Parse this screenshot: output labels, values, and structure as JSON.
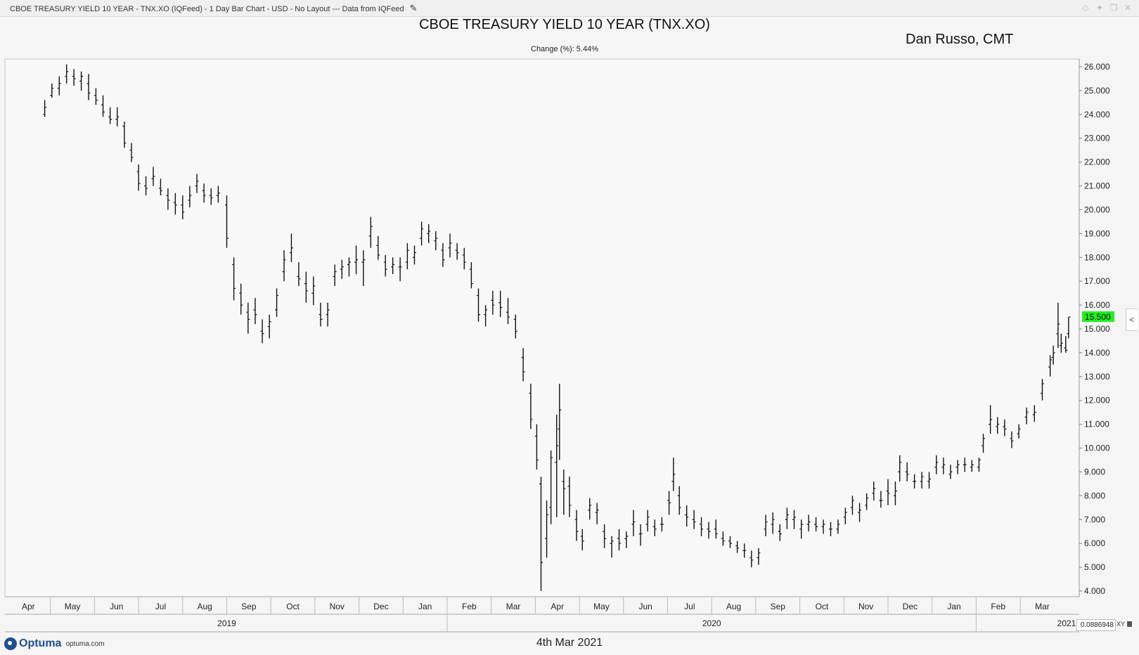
{
  "window": {
    "title": "CBOE TREASURY YIELD 10 YEAR - TNX.XO (IQFeed) - 1 Day Bar Chart - USD - No Layout --- Data from IQFeed",
    "controls": [
      "diamond-icon",
      "pin-icon",
      "restore-icon",
      "close-icon"
    ]
  },
  "author": "Dan Russo, CMT",
  "footer": {
    "brand": "Optuma",
    "url": "optuma.com",
    "date": "4th Mar 2021",
    "scale_value": "0.0886948",
    "scale_mode": "XY"
  },
  "colors": {
    "bar": "#111111",
    "last_price_bg": "#22ee22",
    "logo": "#1e4f8e"
  },
  "chart_data": {
    "type": "bar",
    "title": "CBOE TREASURY YIELD 10 YEAR (TNX.XO)",
    "subtitle": "Change (%): 5.44%",
    "last_price": "15.500",
    "ylim": [
      4,
      26
    ],
    "y_ticks": [
      "4.000",
      "5.000",
      "6.000",
      "7.000",
      "8.000",
      "9.000",
      "10.000",
      "11.000",
      "12.000",
      "13.000",
      "14.000",
      "15.000",
      "16.000",
      "17.000",
      "18.000",
      "19.000",
      "20.000",
      "21.000",
      "22.000",
      "23.000",
      "24.000",
      "25.000",
      "26.000"
    ],
    "month_labels": [
      "Apr",
      "May",
      "Jun",
      "Jul",
      "Aug",
      "Sep",
      "Oct",
      "Nov",
      "Dec",
      "Jan",
      "Feb",
      "Mar",
      "Apr",
      "May",
      "Jun",
      "Jul",
      "Aug",
      "Sep",
      "Oct",
      "Nov",
      "Dec",
      "Jan",
      "Feb",
      "Mar"
    ],
    "year_labels": [
      "2019",
      "2020",
      "2021"
    ],
    "grid": false,
    "series": [
      {
        "values": [
          [
            "2019-03-28",
            24.0,
            24.6,
            23.9,
            24.3
          ],
          [
            "2019-04-02",
            24.8,
            25.3,
            24.7,
            25.1
          ],
          [
            "2019-04-07",
            25.1,
            25.6,
            24.8,
            25.3
          ],
          [
            "2019-04-12",
            25.6,
            26.1,
            25.3,
            25.8
          ],
          [
            "2019-04-17",
            25.6,
            25.9,
            25.2,
            25.5
          ],
          [
            "2019-04-22",
            25.4,
            25.8,
            25.0,
            25.6
          ],
          [
            "2019-04-27",
            25.3,
            25.7,
            24.6,
            24.9
          ],
          [
            "2019-05-02",
            24.8,
            25.1,
            24.4,
            24.6
          ],
          [
            "2019-05-07",
            24.4,
            24.8,
            23.9,
            24.1
          ],
          [
            "2019-05-12",
            23.9,
            24.3,
            23.6,
            23.8
          ],
          [
            "2019-05-17",
            23.8,
            24.3,
            23.5,
            23.9
          ],
          [
            "2019-05-22",
            23.5,
            23.7,
            22.6,
            22.8
          ],
          [
            "2019-05-27",
            22.5,
            22.8,
            22.0,
            22.2
          ],
          [
            "2019-06-01",
            21.6,
            21.9,
            20.8,
            21.1
          ],
          [
            "2019-06-06",
            21.0,
            21.4,
            20.6,
            20.9
          ],
          [
            "2019-06-11",
            21.3,
            21.8,
            21.0,
            21.4
          ],
          [
            "2019-06-16",
            20.9,
            21.3,
            20.6,
            20.8
          ],
          [
            "2019-06-21",
            20.6,
            20.9,
            20.0,
            20.4
          ],
          [
            "2019-06-26",
            20.3,
            20.7,
            19.8,
            20.2
          ],
          [
            "2019-07-01",
            20.2,
            20.6,
            19.6,
            19.9
          ],
          [
            "2019-07-06",
            20.4,
            21.0,
            20.1,
            20.6
          ],
          [
            "2019-07-11",
            21.0,
            21.5,
            20.7,
            21.2
          ],
          [
            "2019-07-16",
            20.8,
            21.1,
            20.3,
            20.6
          ],
          [
            "2019-07-21",
            20.6,
            20.9,
            20.2,
            20.5
          ],
          [
            "2019-07-26",
            20.6,
            21.0,
            20.3,
            20.7
          ],
          [
            "2019-08-01",
            20.2,
            20.6,
            18.4,
            18.8
          ],
          [
            "2019-08-06",
            17.7,
            18.0,
            16.2,
            16.7
          ],
          [
            "2019-08-11",
            16.5,
            16.9,
            15.6,
            16.0
          ],
          [
            "2019-08-16",
            15.7,
            16.1,
            14.8,
            15.4
          ],
          [
            "2019-08-21",
            15.8,
            16.3,
            15.2,
            15.6
          ],
          [
            "2019-08-26",
            14.9,
            15.4,
            14.4,
            14.8
          ],
          [
            "2019-08-31",
            15.1,
            15.6,
            14.6,
            15.3
          ],
          [
            "2019-09-05",
            15.8,
            16.7,
            15.5,
            16.4
          ],
          [
            "2019-09-10",
            17.4,
            18.3,
            17.0,
            17.9
          ],
          [
            "2019-09-15",
            18.2,
            19.0,
            17.8,
            18.4
          ],
          [
            "2019-09-20",
            17.2,
            17.8,
            16.8,
            17.1
          ],
          [
            "2019-09-25",
            16.9,
            17.4,
            16.1,
            16.6
          ],
          [
            "2019-09-30",
            16.5,
            17.2,
            16.0,
            16.8
          ],
          [
            "2019-10-05",
            15.6,
            16.1,
            15.1,
            15.4
          ],
          [
            "2019-10-10",
            15.6,
            16.1,
            15.1,
            15.8
          ],
          [
            "2019-10-15",
            17.2,
            17.7,
            16.8,
            17.4
          ],
          [
            "2019-10-20",
            17.5,
            17.9,
            17.1,
            17.6
          ],
          [
            "2019-10-25",
            17.7,
            18.0,
            17.2,
            17.8
          ],
          [
            "2019-10-30",
            17.8,
            18.5,
            17.3,
            17.9
          ],
          [
            "2019-11-04",
            17.8,
            18.3,
            16.8,
            17.9
          ],
          [
            "2019-11-09",
            18.9,
            19.7,
            18.4,
            19.3
          ],
          [
            "2019-11-14",
            18.5,
            18.9,
            17.9,
            18.1
          ],
          [
            "2019-11-19",
            17.8,
            18.1,
            17.2,
            17.5
          ],
          [
            "2019-11-24",
            17.6,
            18.0,
            17.3,
            17.7
          ],
          [
            "2019-11-29",
            17.6,
            18.0,
            17.0,
            17.6
          ],
          [
            "2019-12-04",
            17.8,
            18.6,
            17.5,
            18.3
          ],
          [
            "2019-12-09",
            18.0,
            18.5,
            17.7,
            18.2
          ],
          [
            "2019-12-14",
            18.8,
            19.5,
            18.5,
            19.2
          ],
          [
            "2019-12-19",
            19.0,
            19.4,
            18.6,
            19.1
          ],
          [
            "2019-12-24",
            18.7,
            19.1,
            18.3,
            18.8
          ],
          [
            "2019-12-29",
            18.3,
            18.6,
            17.6,
            17.9
          ],
          [
            "2020-01-03",
            18.4,
            19.0,
            18.0,
            18.6
          ],
          [
            "2020-01-08",
            18.3,
            18.6,
            17.9,
            18.2
          ],
          [
            "2020-01-13",
            18.1,
            18.4,
            17.5,
            17.8
          ],
          [
            "2020-01-18",
            17.5,
            17.8,
            16.7,
            16.9
          ],
          [
            "2020-01-23",
            16.4,
            16.7,
            15.3,
            15.6
          ],
          [
            "2020-01-28",
            15.6,
            16.0,
            15.1,
            15.8
          ],
          [
            "2020-02-02",
            16.2,
            16.6,
            15.6,
            16.0
          ],
          [
            "2020-02-07",
            16.1,
            16.6,
            15.5,
            15.9
          ],
          [
            "2020-02-12",
            15.7,
            16.3,
            15.2,
            15.5
          ],
          [
            "2020-02-17",
            15.4,
            15.6,
            14.6,
            14.9
          ],
          [
            "2020-02-22",
            13.8,
            14.2,
            12.8,
            13.2
          ],
          [
            "2020-02-27",
            12.3,
            12.7,
            10.8,
            11.2
          ],
          [
            "2020-03-02",
            10.5,
            11.0,
            9.1,
            9.5
          ],
          [
            "2020-03-05",
            8.5,
            8.8,
            4.0,
            5.2
          ],
          [
            "2020-03-09",
            6.2,
            7.8,
            5.4,
            7.2
          ],
          [
            "2020-03-12",
            7.5,
            9.9,
            6.8,
            9.6
          ],
          [
            "2020-03-16",
            9.4,
            11.4,
            7.1,
            10.1
          ],
          [
            "2020-03-18",
            10.8,
            12.7,
            9.5,
            11.6
          ],
          [
            "2020-03-21",
            8.6,
            9.1,
            7.2,
            8.3
          ],
          [
            "2020-03-25",
            8.4,
            8.8,
            7.1,
            7.6
          ],
          [
            "2020-03-30",
            7.0,
            7.4,
            6.1,
            6.5
          ],
          [
            "2020-04-03",
            6.3,
            6.6,
            5.7,
            6.1
          ],
          [
            "2020-04-08",
            7.4,
            7.9,
            7.0,
            7.6
          ],
          [
            "2020-04-13",
            7.3,
            7.7,
            6.8,
            7.4
          ],
          [
            "2020-04-18",
            6.5,
            6.8,
            5.8,
            6.2
          ],
          [
            "2020-04-23",
            6.0,
            6.3,
            5.4,
            6.1
          ],
          [
            "2020-04-28",
            6.2,
            6.6,
            5.7,
            6.0
          ],
          [
            "2020-05-03",
            6.2,
            6.5,
            5.8,
            6.3
          ],
          [
            "2020-05-08",
            6.8,
            7.4,
            6.3,
            6.9
          ],
          [
            "2020-05-13",
            6.4,
            6.8,
            5.9,
            6.4
          ],
          [
            "2020-05-18",
            6.8,
            7.4,
            6.5,
            7.1
          ],
          [
            "2020-05-23",
            6.7,
            7.0,
            6.3,
            6.6
          ],
          [
            "2020-05-28",
            6.8,
            7.1,
            6.5,
            6.8
          ],
          [
            "2020-06-02",
            7.8,
            8.2,
            7.2,
            7.7
          ],
          [
            "2020-06-05",
            8.6,
            9.6,
            8.2,
            8.9
          ],
          [
            "2020-06-09",
            8.0,
            8.4,
            7.2,
            7.5
          ],
          [
            "2020-06-14",
            7.2,
            7.6,
            6.7,
            7.1
          ],
          [
            "2020-06-19",
            7.0,
            7.4,
            6.6,
            6.9
          ],
          [
            "2020-06-24",
            6.8,
            7.1,
            6.3,
            6.6
          ],
          [
            "2020-06-29",
            6.6,
            6.9,
            6.2,
            6.5
          ],
          [
            "2020-07-04",
            6.6,
            7.0,
            6.2,
            6.4
          ],
          [
            "2020-07-09",
            6.2,
            6.5,
            5.9,
            6.1
          ],
          [
            "2020-07-14",
            6.1,
            6.3,
            5.8,
            6.0
          ],
          [
            "2020-07-19",
            5.9,
            6.1,
            5.6,
            5.8
          ],
          [
            "2020-07-24",
            5.7,
            6.0,
            5.4,
            5.7
          ],
          [
            "2020-07-29",
            5.4,
            5.7,
            5.0,
            5.3
          ],
          [
            "2020-08-03",
            5.4,
            5.8,
            5.1,
            5.6
          ],
          [
            "2020-08-08",
            6.6,
            7.2,
            6.3,
            6.9
          ],
          [
            "2020-08-13",
            6.8,
            7.3,
            6.4,
            7.0
          ],
          [
            "2020-08-18",
            6.5,
            6.8,
            6.1,
            6.4
          ],
          [
            "2020-08-23",
            7.0,
            7.5,
            6.6,
            7.2
          ],
          [
            "2020-08-28",
            7.0,
            7.4,
            6.6,
            7.1
          ],
          [
            "2020-09-02",
            6.6,
            7.0,
            6.2,
            6.8
          ],
          [
            "2020-09-07",
            6.8,
            7.2,
            6.5,
            6.9
          ],
          [
            "2020-09-12",
            6.8,
            7.1,
            6.5,
            6.7
          ],
          [
            "2020-09-17",
            6.7,
            7.0,
            6.4,
            6.8
          ],
          [
            "2020-09-22",
            6.6,
            6.9,
            6.3,
            6.6
          ],
          [
            "2020-09-27",
            6.6,
            7.0,
            6.4,
            6.8
          ],
          [
            "2020-10-02",
            7.1,
            7.5,
            6.8,
            7.3
          ],
          [
            "2020-10-07",
            7.5,
            8.0,
            7.2,
            7.8
          ],
          [
            "2020-10-12",
            7.3,
            7.7,
            6.9,
            7.4
          ],
          [
            "2020-10-17",
            7.6,
            8.1,
            7.4,
            7.9
          ],
          [
            "2020-10-22",
            8.1,
            8.6,
            7.8,
            8.3
          ],
          [
            "2020-10-27",
            7.8,
            8.2,
            7.5,
            7.8
          ],
          [
            "2020-11-01",
            8.2,
            8.7,
            7.6,
            8.1
          ],
          [
            "2020-11-06",
            8.0,
            8.6,
            7.6,
            8.2
          ],
          [
            "2020-11-09",
            9.0,
            9.7,
            8.6,
            9.4
          ],
          [
            "2020-11-14",
            9.0,
            9.4,
            8.6,
            8.9
          ],
          [
            "2020-11-19",
            8.6,
            8.9,
            8.3,
            8.6
          ],
          [
            "2020-11-24",
            8.6,
            9.0,
            8.3,
            8.8
          ],
          [
            "2020-11-29",
            8.6,
            9.0,
            8.3,
            8.7
          ],
          [
            "2020-12-04",
            9.2,
            9.7,
            8.9,
            9.4
          ],
          [
            "2020-12-09",
            9.2,
            9.6,
            8.9,
            9.3
          ],
          [
            "2020-12-14",
            8.9,
            9.3,
            8.7,
            9.0
          ],
          [
            "2020-12-19",
            9.2,
            9.5,
            8.9,
            9.3
          ],
          [
            "2020-12-24",
            9.3,
            9.6,
            9.0,
            9.3
          ],
          [
            "2020-12-29",
            9.2,
            9.5,
            9.0,
            9.3
          ],
          [
            "2021-01-03",
            9.2,
            9.6,
            9.0,
            9.5
          ],
          [
            "2021-01-06",
            10.1,
            10.6,
            9.8,
            10.4
          ],
          [
            "2021-01-11",
            11.0,
            11.8,
            10.6,
            11.2
          ],
          [
            "2021-01-16",
            10.9,
            11.3,
            10.6,
            11.0
          ],
          [
            "2021-01-21",
            10.9,
            11.2,
            10.5,
            10.8
          ],
          [
            "2021-01-26",
            10.4,
            10.7,
            10.0,
            10.3
          ],
          [
            "2021-01-31",
            10.6,
            11.0,
            10.4,
            10.8
          ],
          [
            "2021-02-05",
            11.3,
            11.7,
            11.0,
            11.5
          ],
          [
            "2021-02-10",
            11.4,
            11.8,
            11.1,
            11.5
          ],
          [
            "2021-02-15",
            12.3,
            12.9,
            12.0,
            12.7
          ],
          [
            "2021-02-20",
            13.4,
            13.9,
            13.0,
            13.7
          ],
          [
            "2021-02-22",
            13.8,
            14.3,
            13.5,
            14.0
          ],
          [
            "2021-02-25",
            14.8,
            16.1,
            14.2,
            15.2
          ],
          [
            "2021-02-27",
            14.3,
            14.8,
            14.0,
            14.4
          ],
          [
            "2021-03-02",
            14.2,
            14.7,
            14.0,
            14.1
          ],
          [
            "2021-03-04",
            14.8,
            15.5,
            14.6,
            15.5
          ]
        ]
      }
    ]
  }
}
